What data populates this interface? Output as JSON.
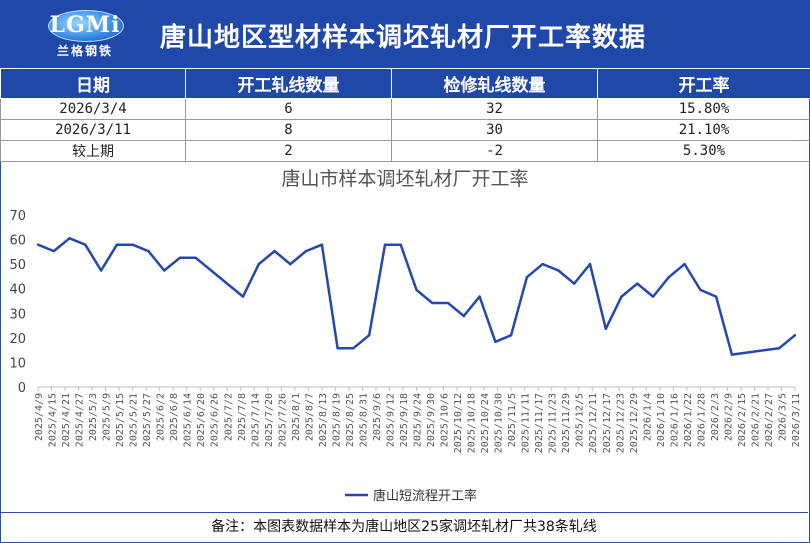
{
  "header": {
    "logo_letters": "LGMi",
    "logo_subtitle": "兰格钢铁",
    "title": "唐山地区型材样本调坯轧材厂开工率数据"
  },
  "table": {
    "columns": [
      "日期",
      "开工轧线数量",
      "检修轧线数量",
      "开工率"
    ],
    "rows": [
      [
        "2026/3/4",
        "6",
        "32",
        "15.80%"
      ],
      [
        "2026/3/11",
        "8",
        "30",
        "21.10%"
      ],
      [
        "较上期",
        "2",
        "-2",
        "5.30%"
      ]
    ]
  },
  "footer": {
    "note": "备注：本图表数据样本为唐山地区25家调坯轧材厂共38条轧线"
  },
  "colors": {
    "header_bg": "#2048a8",
    "series_line": "#2448b0"
  },
  "chart_data": {
    "type": "line",
    "title": "唐山市样本调坯轧材厂开工率",
    "xlabel": "",
    "ylabel": "",
    "ylim": [
      0,
      70
    ],
    "yticks": [
      0,
      10,
      20,
      30,
      40,
      50,
      60,
      70
    ],
    "grid": false,
    "legend_position": "bottom",
    "x": [
      "2025/4/9",
      "2025/4/15",
      "2025/4/21",
      "2025/4/27",
      "2025/5/3",
      "2025/5/9",
      "2025/5/15",
      "2025/5/21",
      "2025/5/27",
      "2025/6/2",
      "2025/6/8",
      "2025/6/14",
      "2025/6/20",
      "2025/6/26",
      "2025/7/2",
      "2025/7/8",
      "2025/7/14",
      "2025/7/20",
      "2025/7/26",
      "2025/8/1",
      "2025/8/7",
      "2025/8/13",
      "2025/8/19",
      "2025/8/25",
      "2025/8/31",
      "2025/9/6",
      "2025/9/12",
      "2025/9/18",
      "2025/9/24",
      "2025/9/30",
      "2025/10/6",
      "2025/10/12",
      "2025/10/18",
      "2025/10/24",
      "2025/10/30",
      "2025/11/5",
      "2025/11/11",
      "2025/11/17",
      "2025/11/23",
      "2025/11/29",
      "2025/12/5",
      "2025/12/11",
      "2025/12/17",
      "2025/12/23",
      "2025/12/29",
      "2026/1/4",
      "2026/1/10",
      "2026/1/16",
      "2026/1/22",
      "2026/1/28",
      "2026/2/3",
      "2026/2/9",
      "2026/2/15",
      "2026/2/21",
      "2026/2/27",
      "2026/3/5",
      "2026/3/11"
    ],
    "series": [
      {
        "name": "唐山短流程开工率",
        "points": [
          [
            "2025/4/9",
            57.9
          ],
          [
            "2025/4/16",
            55.3
          ],
          [
            "2025/4/23",
            60.5
          ],
          [
            "2025/4/30",
            57.9
          ],
          [
            "2025/5/7",
            47.4
          ],
          [
            "2025/5/14",
            57.9
          ],
          [
            "2025/5/21",
            57.9
          ],
          [
            "2025/5/28",
            55.3
          ],
          [
            "2025/6/4",
            47.4
          ],
          [
            "2025/6/11",
            52.6
          ],
          [
            "2025/6/18",
            52.6
          ],
          [
            "2025/7/9",
            36.8
          ],
          [
            "2025/7/16",
            50.0
          ],
          [
            "2025/7/23",
            55.3
          ],
          [
            "2025/7/30",
            50.0
          ],
          [
            "2025/8/6",
            55.3
          ],
          [
            "2025/8/13",
            57.9
          ],
          [
            "2025/8/20",
            15.8
          ],
          [
            "2025/8/27",
            15.8
          ],
          [
            "2025/9/3",
            21.1
          ],
          [
            "2025/9/10",
            57.9
          ],
          [
            "2025/9/17",
            57.9
          ],
          [
            "2025/9/24",
            39.5
          ],
          [
            "2025/10/1",
            34.2
          ],
          [
            "2025/10/8",
            34.2
          ],
          [
            "2025/10/15",
            28.9
          ],
          [
            "2025/10/22",
            36.8
          ],
          [
            "2025/10/29",
            18.4
          ],
          [
            "2025/11/5",
            21.1
          ],
          [
            "2025/11/12",
            44.7
          ],
          [
            "2025/11/19",
            50.0
          ],
          [
            "2025/11/26",
            47.4
          ],
          [
            "2025/12/3",
            42.1
          ],
          [
            "2025/12/10",
            50.0
          ],
          [
            "2025/12/17",
            23.7
          ],
          [
            "2025/12/24",
            36.8
          ],
          [
            "2025/12/31",
            42.1
          ],
          [
            "2026/1/7",
            36.8
          ],
          [
            "2026/1/14",
            44.7
          ],
          [
            "2026/1/21",
            50.0
          ],
          [
            "2026/1/28",
            39.5
          ],
          [
            "2026/2/4",
            36.8
          ],
          [
            "2026/2/11",
            13.2
          ],
          [
            "2026/3/4",
            15.8
          ],
          [
            "2026/3/11",
            21.1
          ]
        ]
      }
    ]
  }
}
